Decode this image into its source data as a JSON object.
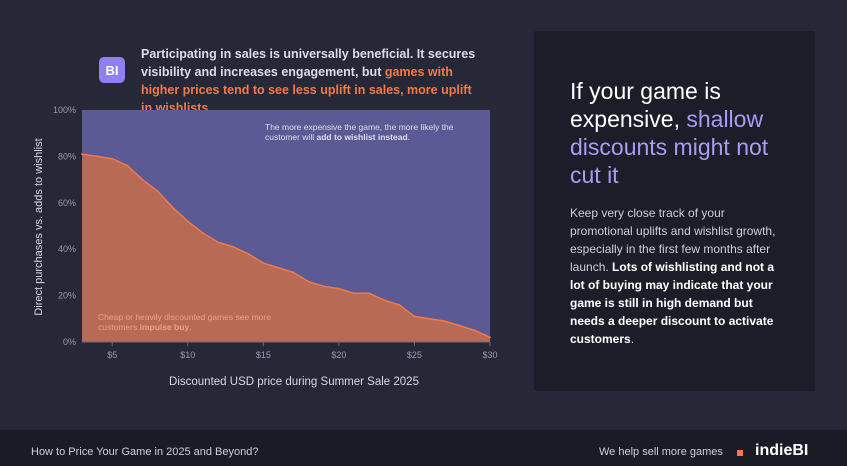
{
  "logo": {
    "text": "BI"
  },
  "intro": {
    "text_1": "Participating in sales is universally beneficial. It secures visibility and increases engagement, but ",
    "highlight": "games with higher prices tend to see less uplift in sales, more uplift in wishlists."
  },
  "chart_data": {
    "type": "area",
    "title": "",
    "xlabel": "Discounted USD price during Summer Sale 2025",
    "ylabel": "Direct purchases vs. adds to wishlist",
    "xlim": [
      3,
      30
    ],
    "ylim": [
      0,
      100
    ],
    "x_ticks": [
      5,
      10,
      15,
      20,
      25,
      30
    ],
    "x_tick_labels": [
      "$5",
      "$10",
      "$15",
      "$20",
      "$25",
      "$30"
    ],
    "y_ticks": [
      0,
      20,
      40,
      60,
      80,
      100
    ],
    "y_tick_labels": [
      "0%",
      "20%",
      "40%",
      "60%",
      "80%",
      "100%"
    ],
    "series": [
      {
        "x": [
          3,
          4,
          5,
          6,
          7,
          8,
          9,
          10,
          11,
          12,
          13,
          14,
          15,
          16,
          17,
          18,
          19,
          20,
          21,
          22,
          23,
          24,
          25,
          26,
          27,
          28,
          29,
          30
        ],
        "y": [
          81,
          80,
          79,
          76,
          70,
          65,
          58,
          52,
          47,
          43,
          41,
          38,
          34,
          32,
          30,
          26,
          24,
          23,
          21,
          21,
          18,
          16,
          11,
          10,
          9,
          7,
          5,
          2
        ]
      }
    ],
    "colors": {
      "lower_area": "#b86a55",
      "upper_area": "#5b5a94",
      "line": "#f07a48"
    },
    "annotation_top": {
      "text": "The more expensive the game, the more likely the customer will ",
      "bold": "add to wishlist instead",
      "end": "."
    },
    "annotation_bottom": {
      "text": "Cheap or heavily discounted games see more customers ",
      "bold": "impulse buy",
      "end": "."
    }
  },
  "panel": {
    "headline_1": "If your game is expensive, ",
    "headline_accent": "shallow discounts might not cut it",
    "body_1": "Keep very close track of your promotional uplifts and wishlist growth, especially in the first few months after launch. ",
    "body_bold": "Lots of wishlisting and not a lot of buying may indicate that your game is still in high demand but needs a deeper discount to activate customers",
    "body_end": "."
  },
  "footer": {
    "left": "How to Price Your Game in 2025 and Beyond?",
    "right": "We help sell more games",
    "brand": "indieBI"
  }
}
